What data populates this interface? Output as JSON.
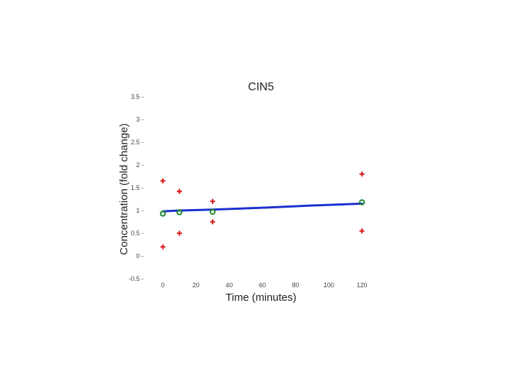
{
  "chart_data": {
    "type": "scatter",
    "title": "CIN5",
    "xlabel": "Time (minutes)",
    "ylabel": "Concentration (fold change)",
    "xlim": [
      0,
      120
    ],
    "ylim": [
      -0.5,
      3.5
    ],
    "xticks": [
      "0",
      "20",
      "40",
      "60",
      "80",
      "100",
      "120"
    ],
    "yticks": [
      "3.5",
      "3",
      "2.5",
      "2",
      "1.5",
      "1",
      "0.5",
      "0",
      "-0.5"
    ],
    "grid": false,
    "series": [
      {
        "marker": "plus",
        "color": "#e02020",
        "points": [
          [
            0,
            1.65
          ],
          [
            0,
            0.2
          ],
          [
            10,
            1.42
          ],
          [
            10,
            0.5
          ],
          [
            30,
            1.2
          ],
          [
            30,
            0.75
          ],
          [
            120,
            1.8
          ],
          [
            120,
            0.55
          ]
        ]
      },
      {
        "marker": "circle",
        "color": "#1f8a2e",
        "points": [
          [
            0,
            0.93
          ],
          [
            10,
            0.96
          ],
          [
            30,
            0.97
          ],
          [
            120,
            1.18
          ]
        ]
      },
      {
        "marker": "line",
        "color": "#1a2fcf",
        "points": [
          [
            0,
            0.98
          ],
          [
            10,
            1.0
          ],
          [
            30,
            1.02
          ],
          [
            60,
            1.06
          ],
          [
            90,
            1.11
          ],
          [
            120,
            1.15
          ]
        ]
      }
    ]
  }
}
